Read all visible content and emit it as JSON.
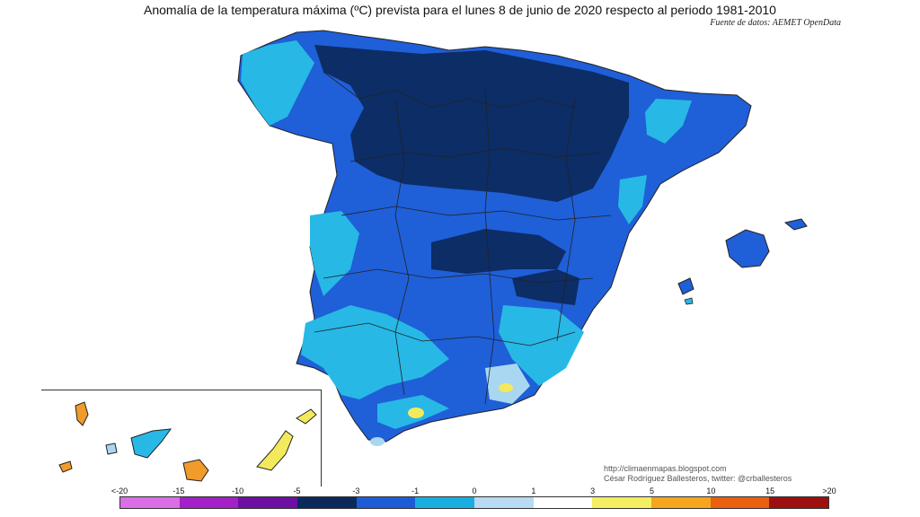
{
  "title": "Anomalía de la temperatura máxima (ºC) prevista para el lunes 8 de junio de 2020 respecto al periodo 1981-2010",
  "source": "Fuente de datos: AEMET OpenData",
  "credits": {
    "blog": "http://climaenmapas.blogspot.com",
    "author": "César Rodríguez Ballesteros, twitter: @crballesteros"
  },
  "legend": {
    "labels": [
      "<-20",
      "-15",
      "-10",
      "-5",
      "-3",
      "-1",
      "0",
      "1",
      "3",
      "5",
      "10",
      "15",
      ">20"
    ],
    "colors": [
      "#d96ee6",
      "#a31fc8",
      "#6d0fa3",
      "#0a2a5e",
      "#1e5bd6",
      "#1aaee0",
      "#b8daf2",
      "#ffffff",
      "#f5ee62",
      "#f5a51e",
      "#e86010",
      "#9c1010",
      "#6a3a0a"
    ]
  },
  "map_colors": {
    "dark_blue": "#0c2d66",
    "mid_blue": "#1f5fd8",
    "light_blue": "#27b8e6",
    "pale_blue": "#a9d7f2",
    "yellow": "#f2ea5c",
    "orange": "#f09b2a",
    "border": "#222222"
  }
}
